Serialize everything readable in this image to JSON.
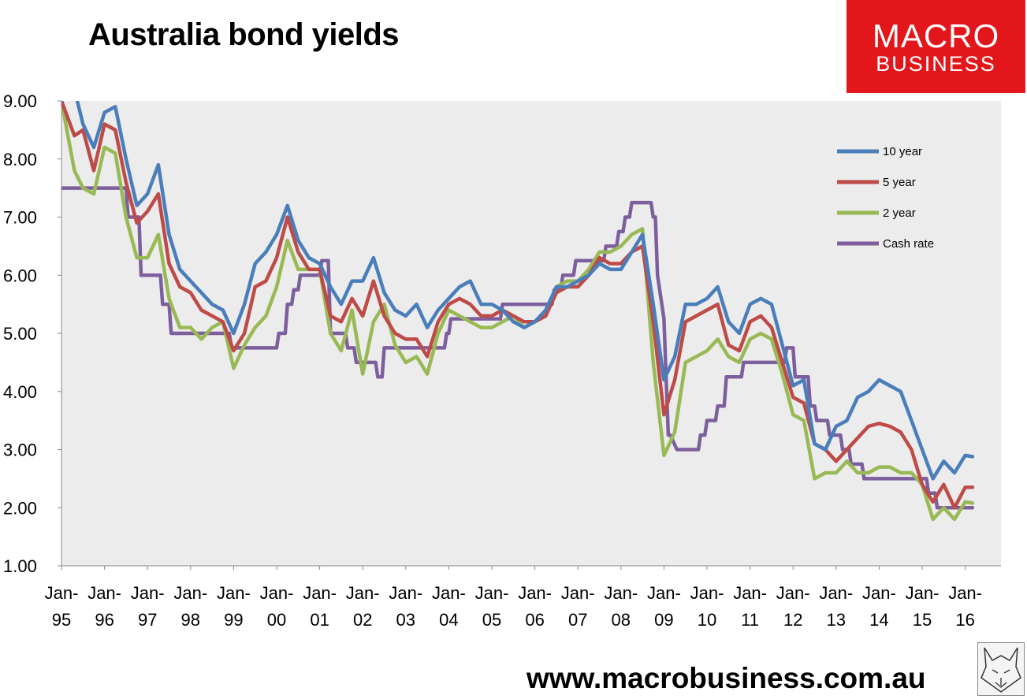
{
  "header": {
    "title": "Australia bond yields"
  },
  "logo": {
    "line1": "MACRO",
    "line2": "BUSINESS"
  },
  "footer": {
    "url": "www.macrobusiness.com.au"
  },
  "chart_data": {
    "type": "line",
    "title": "Australia bond yields",
    "xlabel": "",
    "ylabel": "",
    "ylim": [
      1.0,
      9.0
    ],
    "xlim": [
      1995.0,
      2016.8
    ],
    "yticks": [
      "9.00",
      "8.00",
      "7.00",
      "6.00",
      "5.00",
      "4.00",
      "3.00",
      "2.00",
      "1.00"
    ],
    "xticks": [
      {
        "top": "Jan-",
        "bottom": "95"
      },
      {
        "top": "Jan-",
        "bottom": "96"
      },
      {
        "top": "Jan-",
        "bottom": "97"
      },
      {
        "top": "Jan-",
        "bottom": "98"
      },
      {
        "top": "Jan-",
        "bottom": "99"
      },
      {
        "top": "Jan-",
        "bottom": "00"
      },
      {
        "top": "Jan-",
        "bottom": "01"
      },
      {
        "top": "Jan-",
        "bottom": "02"
      },
      {
        "top": "Jan-",
        "bottom": "03"
      },
      {
        "top": "Jan-",
        "bottom": "04"
      },
      {
        "top": "Jan-",
        "bottom": "05"
      },
      {
        "top": "Jan-",
        "bottom": "06"
      },
      {
        "top": "Jan-",
        "bottom": "07"
      },
      {
        "top": "Jan-",
        "bottom": "08"
      },
      {
        "top": "Jan-",
        "bottom": "09"
      },
      {
        "top": "Jan-",
        "bottom": "10"
      },
      {
        "top": "Jan-",
        "bottom": "11"
      },
      {
        "top": "Jan-",
        "bottom": "12"
      },
      {
        "top": "Jan-",
        "bottom": "13"
      },
      {
        "top": "Jan-",
        "bottom": "14"
      },
      {
        "top": "Jan-",
        "bottom": "15"
      },
      {
        "top": "Jan-",
        "bottom": "16"
      }
    ],
    "grid": false,
    "legend": "right",
    "series": [
      {
        "name": "10 year",
        "color": "#4a7ebb",
        "x": [
          1995.0,
          1995.3,
          1995.5,
          1995.75,
          1996.0,
          1996.25,
          1996.5,
          1996.75,
          1997.0,
          1997.25,
          1997.5,
          1997.75,
          1998.0,
          1998.25,
          1998.5,
          1998.75,
          1999.0,
          1999.25,
          1999.5,
          1999.75,
          2000.0,
          2000.25,
          2000.5,
          2000.75,
          2001.0,
          2001.25,
          2001.5,
          2001.75,
          2002.0,
          2002.25,
          2002.5,
          2002.75,
          2003.0,
          2003.25,
          2003.5,
          2003.75,
          2004.0,
          2004.25,
          2004.5,
          2004.75,
          2005.0,
          2005.25,
          2005.5,
          2005.75,
          2006.0,
          2006.25,
          2006.5,
          2006.75,
          2007.0,
          2007.25,
          2007.5,
          2007.75,
          2008.0,
          2008.25,
          2008.5,
          2008.75,
          2009.0,
          2009.25,
          2009.5,
          2009.75,
          2010.0,
          2010.25,
          2010.5,
          2010.75,
          2011.0,
          2011.25,
          2011.5,
          2011.75,
          2012.0,
          2012.25,
          2012.5,
          2012.75,
          2013.0,
          2013.25,
          2013.5,
          2013.75,
          2014.0,
          2014.25,
          2014.5,
          2014.75,
          2015.0,
          2015.25,
          2015.5,
          2015.75,
          2016.0,
          2016.17
        ],
        "y": [
          9.0,
          9.2,
          8.6,
          8.2,
          8.8,
          8.9,
          8.0,
          7.2,
          7.4,
          7.9,
          6.7,
          6.1,
          5.9,
          5.7,
          5.5,
          5.4,
          5.0,
          5.5,
          6.2,
          6.4,
          6.7,
          7.2,
          6.6,
          6.3,
          6.2,
          5.8,
          5.5,
          5.9,
          5.9,
          6.3,
          5.7,
          5.4,
          5.3,
          5.5,
          5.1,
          5.4,
          5.6,
          5.8,
          5.9,
          5.5,
          5.5,
          5.4,
          5.2,
          5.1,
          5.2,
          5.4,
          5.8,
          5.8,
          5.9,
          6.0,
          6.2,
          6.1,
          6.1,
          6.4,
          6.7,
          5.5,
          4.2,
          4.6,
          5.5,
          5.5,
          5.6,
          5.8,
          5.2,
          5.0,
          5.5,
          5.6,
          5.5,
          4.8,
          4.1,
          4.2,
          3.1,
          3.0,
          3.4,
          3.5,
          3.9,
          4.0,
          4.2,
          4.1,
          4.0,
          3.5,
          3.0,
          2.5,
          2.8,
          2.6,
          2.9,
          2.88
        ]
      },
      {
        "name": "5 year",
        "color": "#be4b48",
        "x": [
          1995.0,
          1995.3,
          1995.5,
          1995.75,
          1996.0,
          1996.25,
          1996.5,
          1996.75,
          1997.0,
          1997.25,
          1997.5,
          1997.75,
          1998.0,
          1998.25,
          1998.5,
          1998.75,
          1999.0,
          1999.25,
          1999.5,
          1999.75,
          2000.0,
          2000.25,
          2000.5,
          2000.75,
          2001.0,
          2001.25,
          2001.5,
          2001.75,
          2002.0,
          2002.25,
          2002.5,
          2002.75,
          2003.0,
          2003.25,
          2003.5,
          2003.75,
          2004.0,
          2004.25,
          2004.5,
          2004.75,
          2005.0,
          2005.25,
          2005.5,
          2005.75,
          2006.0,
          2006.25,
          2006.5,
          2006.75,
          2007.0,
          2007.25,
          2007.5,
          2007.75,
          2008.0,
          2008.25,
          2008.5,
          2008.75,
          2009.0,
          2009.25,
          2009.5,
          2009.75,
          2010.0,
          2010.25,
          2010.5,
          2010.75,
          2011.0,
          2011.25,
          2011.5,
          2011.75,
          2012.0,
          2012.25,
          2012.5,
          2012.75,
          2013.0,
          2013.25,
          2013.5,
          2013.75,
          2014.0,
          2014.25,
          2014.5,
          2014.75,
          2015.0,
          2015.25,
          2015.5,
          2015.75,
          2016.0,
          2016.17
        ],
        "y": [
          9.0,
          8.4,
          8.5,
          7.8,
          8.6,
          8.5,
          7.6,
          6.9,
          7.1,
          7.4,
          6.2,
          5.8,
          5.7,
          5.4,
          5.3,
          5.2,
          4.7,
          5.0,
          5.8,
          5.9,
          6.3,
          7.0,
          6.4,
          6.1,
          6.1,
          5.3,
          5.2,
          5.6,
          5.3,
          5.9,
          5.3,
          5.0,
          4.9,
          4.9,
          4.6,
          5.2,
          5.5,
          5.6,
          5.5,
          5.3,
          5.3,
          5.4,
          5.3,
          5.2,
          5.2,
          5.3,
          5.7,
          5.8,
          5.8,
          6.0,
          6.3,
          6.2,
          6.2,
          6.4,
          6.5,
          5.2,
          3.6,
          4.2,
          5.2,
          5.3,
          5.4,
          5.5,
          4.8,
          4.7,
          5.2,
          5.3,
          5.1,
          4.5,
          3.9,
          3.8,
          3.1,
          3.0,
          2.8,
          3.0,
          3.2,
          3.4,
          3.45,
          3.4,
          3.3,
          3.0,
          2.4,
          2.1,
          2.4,
          2.0,
          2.35,
          2.35
        ]
      },
      {
        "name": "2 year",
        "color": "#98b954",
        "x": [
          1995.0,
          1995.3,
          1995.5,
          1995.75,
          1996.0,
          1996.25,
          1996.5,
          1996.75,
          1997.0,
          1997.25,
          1997.5,
          1997.75,
          1998.0,
          1998.25,
          1998.5,
          1998.75,
          1999.0,
          1999.25,
          1999.5,
          1999.75,
          2000.0,
          2000.25,
          2000.5,
          2000.75,
          2001.0,
          2001.25,
          2001.5,
          2001.75,
          2002.0,
          2002.25,
          2002.5,
          2002.75,
          2003.0,
          2003.25,
          2003.5,
          2003.75,
          2004.0,
          2004.25,
          2004.5,
          2004.75,
          2005.0,
          2005.25,
          2005.5,
          2005.75,
          2006.0,
          2006.25,
          2006.5,
          2006.75,
          2007.0,
          2007.25,
          2007.5,
          2007.75,
          2008.0,
          2008.25,
          2008.5,
          2008.75,
          2009.0,
          2009.25,
          2009.5,
          2009.75,
          2010.0,
          2010.25,
          2010.5,
          2010.75,
          2011.0,
          2011.25,
          2011.5,
          2011.75,
          2012.0,
          2012.25,
          2012.5,
          2012.75,
          2013.0,
          2013.25,
          2013.5,
          2013.75,
          2014.0,
          2014.25,
          2014.5,
          2014.75,
          2015.0,
          2015.25,
          2015.5,
          2015.75,
          2016.0,
          2016.17
        ],
        "y": [
          9.0,
          7.8,
          7.5,
          7.4,
          8.2,
          8.1,
          7.0,
          6.3,
          6.3,
          6.7,
          5.6,
          5.1,
          5.1,
          4.9,
          5.1,
          5.2,
          4.4,
          4.8,
          5.1,
          5.3,
          5.8,
          6.6,
          6.1,
          6.1,
          6.1,
          5.0,
          4.7,
          5.4,
          4.3,
          5.2,
          5.5,
          4.8,
          4.5,
          4.6,
          4.3,
          5.0,
          5.4,
          5.3,
          5.2,
          5.1,
          5.1,
          5.2,
          5.3,
          5.1,
          5.2,
          5.3,
          5.8,
          5.9,
          5.9,
          6.1,
          6.4,
          6.4,
          6.5,
          6.7,
          6.8,
          4.5,
          2.9,
          3.3,
          4.5,
          4.6,
          4.7,
          4.9,
          4.6,
          4.5,
          4.9,
          5.0,
          4.9,
          4.3,
          3.6,
          3.5,
          2.5,
          2.6,
          2.6,
          2.8,
          2.6,
          2.6,
          2.7,
          2.7,
          2.6,
          2.6,
          2.4,
          1.8,
          2.0,
          1.8,
          2.1,
          2.08
        ]
      },
      {
        "name": "Cash rate",
        "color": "#7e5f9e",
        "x": [
          1995.0,
          1996.5,
          1996.55,
          1996.8,
          1996.85,
          1997.3,
          1997.35,
          1997.5,
          1997.55,
          1998.9,
          1998.95,
          2000.0,
          2000.05,
          2000.2,
          2000.25,
          2000.35,
          2000.4,
          2000.5,
          2000.55,
          2001.0,
          2001.05,
          2001.2,
          2001.25,
          2001.6,
          2001.65,
          2001.8,
          2001.85,
          2002.3,
          2002.35,
          2002.45,
          2002.5,
          2003.9,
          2003.95,
          2004.0,
          2004.05,
          2005.2,
          2005.25,
          2006.4,
          2006.45,
          2006.6,
          2006.65,
          2006.9,
          2006.95,
          2007.6,
          2007.65,
          2007.9,
          2007.95,
          2008.05,
          2008.1,
          2008.2,
          2008.25,
          2008.7,
          2008.75,
          2008.8,
          2008.85,
          2009.0,
          2009.05,
          2009.1,
          2009.15,
          2009.3,
          2009.35,
          2009.8,
          2009.85,
          2009.95,
          2010.0,
          2010.2,
          2010.25,
          2010.4,
          2010.45,
          2010.8,
          2010.85,
          2011.8,
          2011.85,
          2012.0,
          2012.05,
          2012.35,
          2012.4,
          2012.5,
          2012.55,
          2012.8,
          2012.85,
          2013.1,
          2013.15,
          2013.3,
          2013.35,
          2013.6,
          2013.65,
          2015.1,
          2015.15,
          2015.3,
          2015.35,
          2016.17
        ],
        "y": [
          7.5,
          7.5,
          7.0,
          7.0,
          6.0,
          6.0,
          5.5,
          5.5,
          5.0,
          5.0,
          4.75,
          4.75,
          5.0,
          5.0,
          5.5,
          5.5,
          5.75,
          5.75,
          6.0,
          6.0,
          6.25,
          6.25,
          5.0,
          5.0,
          4.75,
          4.75,
          4.5,
          4.5,
          4.25,
          4.25,
          4.75,
          4.75,
          5.0,
          5.0,
          5.25,
          5.25,
          5.5,
          5.5,
          5.75,
          5.75,
          6.0,
          6.0,
          6.25,
          6.25,
          6.5,
          6.5,
          6.75,
          6.75,
          7.0,
          7.0,
          7.25,
          7.25,
          7.0,
          7.0,
          6.0,
          5.25,
          4.25,
          3.25,
          3.25,
          3.0,
          3.0,
          3.0,
          3.25,
          3.25,
          3.5,
          3.5,
          3.75,
          3.75,
          4.25,
          4.25,
          4.5,
          4.5,
          4.75,
          4.75,
          4.25,
          4.25,
          3.75,
          3.75,
          3.5,
          3.5,
          3.25,
          3.25,
          3.0,
          3.0,
          2.75,
          2.75,
          2.5,
          2.5,
          2.25,
          2.25,
          2.0,
          2.0
        ]
      }
    ]
  }
}
